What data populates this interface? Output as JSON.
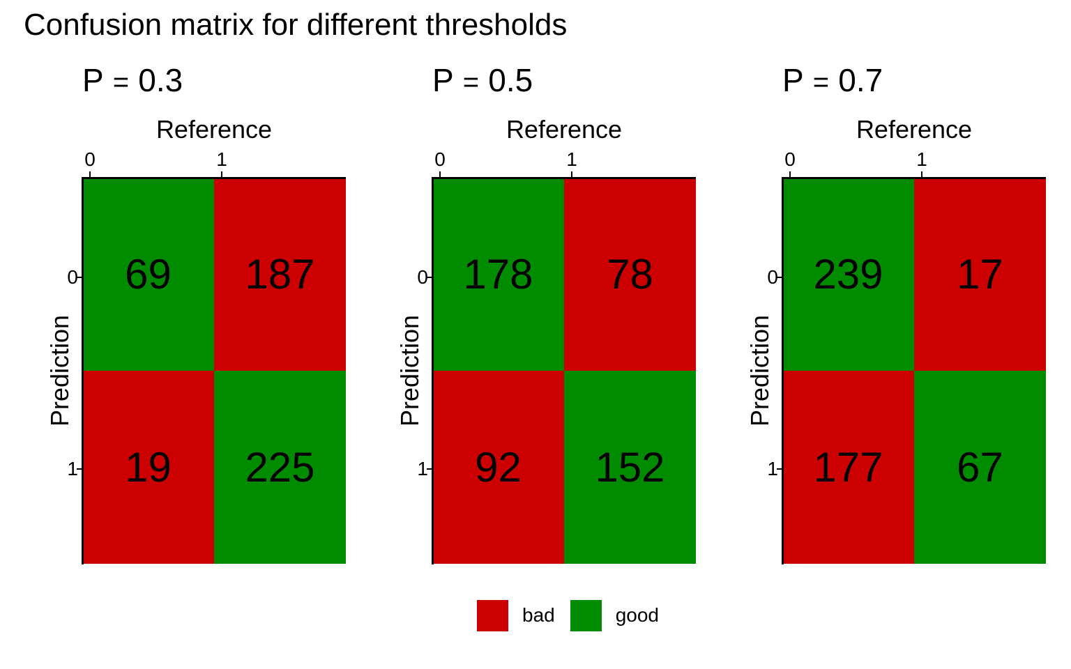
{
  "title": "Confusion matrix for different thresholds",
  "colors": {
    "bad": "#CC0000",
    "good": "#008B00"
  },
  "legend": [
    {
      "label": "bad",
      "color": "#CC0000"
    },
    {
      "label": "good",
      "color": "#008B00"
    }
  ],
  "chart_data": [
    {
      "type": "heatmap",
      "title_prefix": "P",
      "title_value": "0.3",
      "xlabel": "Reference",
      "ylabel": "Prediction",
      "x_categories": [
        "0",
        "1"
      ],
      "y_categories": [
        "0",
        "1"
      ],
      "cells": [
        {
          "prediction": "0",
          "reference": "0",
          "value": 69,
          "class": "good"
        },
        {
          "prediction": "0",
          "reference": "1",
          "value": 187,
          "class": "bad"
        },
        {
          "prediction": "1",
          "reference": "0",
          "value": 19,
          "class": "bad"
        },
        {
          "prediction": "1",
          "reference": "1",
          "value": 225,
          "class": "good"
        }
      ]
    },
    {
      "type": "heatmap",
      "title_prefix": "P",
      "title_value": "0.5",
      "xlabel": "Reference",
      "ylabel": "Prediction",
      "x_categories": [
        "0",
        "1"
      ],
      "y_categories": [
        "0",
        "1"
      ],
      "cells": [
        {
          "prediction": "0",
          "reference": "0",
          "value": 178,
          "class": "good"
        },
        {
          "prediction": "0",
          "reference": "1",
          "value": 78,
          "class": "bad"
        },
        {
          "prediction": "1",
          "reference": "0",
          "value": 92,
          "class": "bad"
        },
        {
          "prediction": "1",
          "reference": "1",
          "value": 152,
          "class": "good"
        }
      ]
    },
    {
      "type": "heatmap",
      "title_prefix": "P",
      "title_value": "0.7",
      "xlabel": "Reference",
      "ylabel": "Prediction",
      "x_categories": [
        "0",
        "1"
      ],
      "y_categories": [
        "0",
        "1"
      ],
      "cells": [
        {
          "prediction": "0",
          "reference": "0",
          "value": 239,
          "class": "good"
        },
        {
          "prediction": "0",
          "reference": "1",
          "value": 17,
          "class": "bad"
        },
        {
          "prediction": "1",
          "reference": "0",
          "value": 177,
          "class": "bad"
        },
        {
          "prediction": "1",
          "reference": "1",
          "value": 67,
          "class": "good"
        }
      ]
    }
  ]
}
